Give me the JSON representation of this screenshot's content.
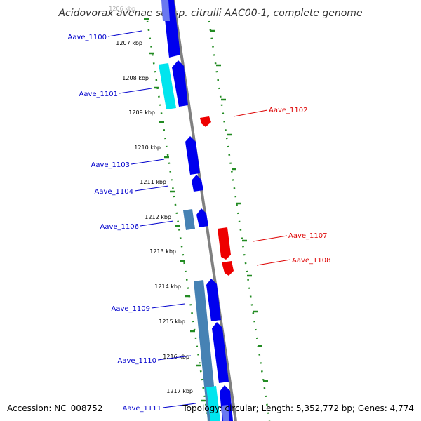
{
  "title": "Acidovorax avenae subsp. citrulli AAC00-1, complete genome",
  "footer": {
    "accession": "Accession: NC_008752",
    "topology": "Topology: circular; Length: 5,352,772 bp; Genes: 4,774"
  },
  "colors": {
    "forward_gene": "#0000ee",
    "reverse_gene": "#ee0000",
    "cds_block": "#00e5ee",
    "steel_block": "#4682b4",
    "backbone": "#808080",
    "tick_mark": "#228b22",
    "left_label": "#0000cc",
    "right_label": "#dd0000"
  },
  "kbp_ticks": [
    {
      "label": "1206 kbp",
      "faded": true
    },
    {
      "label": "1207 kbp"
    },
    {
      "label": "1208 kbp"
    },
    {
      "label": "1209 kbp"
    },
    {
      "label": "1210 kbp"
    },
    {
      "label": "1211 kbp"
    },
    {
      "label": "1212 kbp"
    },
    {
      "label": "1213 kbp"
    },
    {
      "label": "1214 kbp"
    },
    {
      "label": "1215 kbp"
    },
    {
      "label": "1216 kbp"
    },
    {
      "label": "1217 kbp"
    }
  ],
  "gene_labels": {
    "left": [
      "Aave_1100",
      "Aave_1101",
      "Aave_1103",
      "Aave_1104",
      "Aave_1106",
      "Aave_1109",
      "Aave_1110",
      "Aave_1111"
    ],
    "right": [
      "Aave_1102",
      "Aave_1107",
      "Aave_1108"
    ]
  }
}
